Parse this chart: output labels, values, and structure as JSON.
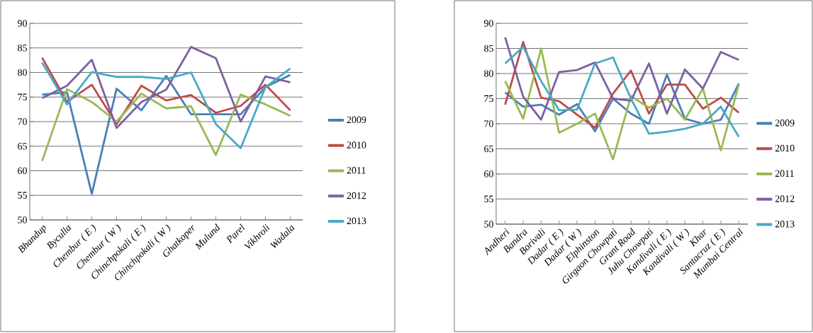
{
  "chart_data": [
    {
      "type": "line",
      "categories": [
        "Bhandup",
        "Byculla",
        "Chembur ( E )",
        "Chembur ( W )",
        "Chinchpokali ( E )",
        "Chinchpokali ( W )",
        "Ghatkoper",
        "Mulund",
        "Parel",
        "Vikhroli",
        "Wadala"
      ],
      "series": [
        {
          "name": "2009",
          "color": "#4a7ebb",
          "values": [
            75.5,
            76,
            55.3,
            76.7,
            72.3,
            79.3,
            71.5,
            71.5,
            71.5,
            77,
            79.5
          ]
        },
        {
          "name": "2010",
          "color": "#be4b48",
          "values": [
            83,
            74,
            77.5,
            69.5,
            77.3,
            74.3,
            75.4,
            71.8,
            73.2,
            77.5,
            72.3
          ]
        },
        {
          "name": "2011",
          "color": "#98b954",
          "values": [
            62,
            76.6,
            74,
            70,
            75.7,
            72.7,
            73.1,
            63.2,
            75.5,
            73.5,
            71.2
          ]
        },
        {
          "name": "2012",
          "color": "#7d60a0",
          "values": [
            74.8,
            77.3,
            82.6,
            68.7,
            74,
            76.5,
            85.2,
            82.9,
            70,
            79.2,
            78
          ]
        },
        {
          "name": "2013",
          "color": "#46aac5",
          "values": [
            82,
            73.5,
            80.1,
            79.1,
            79.1,
            78.7,
            80,
            69.5,
            64.6,
            77,
            80.8
          ]
        }
      ],
      "ylim": [
        50,
        90
      ],
      "yticks": [
        50,
        55,
        60,
        65,
        70,
        75,
        80,
        85,
        90
      ],
      "grid": "y",
      "legend": "right",
      "marker": "none",
      "line_style": "solid"
    },
    {
      "type": "line",
      "categories": [
        "Andheri",
        "Bandra",
        "Borivali",
        "Dadar ( E )",
        "Dadar ( W )",
        "Elphinston",
        "Girgaon Chowpati",
        "Grant Road",
        "Juhu Chowpati",
        "Kandivali ( E )",
        "Kandivali ( W )",
        "Khar",
        "Santacruz ( E )",
        "Mumbai Central"
      ],
      "series": [
        {
          "name": "2009",
          "color": "#4a7ebb",
          "values": [
            76.2,
            73.4,
            73.8,
            71.8,
            73.9,
            68.5,
            75,
            72,
            70,
            79.8,
            71,
            70,
            70.8,
            78
          ]
        },
        {
          "name": "2010",
          "color": "#be4b48",
          "values": [
            73.8,
            86.3,
            75.2,
            74.5,
            71.8,
            69.2,
            76,
            80.6,
            72,
            77.8,
            77.8,
            73,
            75.2,
            72.2
          ]
        },
        {
          "name": "2011",
          "color": "#98b954",
          "values": [
            78.5,
            71,
            85,
            68.2,
            70,
            72,
            62.9,
            75.5,
            73.2,
            75,
            70.8,
            77,
            64.7,
            77.8
          ]
        },
        {
          "name": "2012",
          "color": "#7d60a0",
          "values": [
            87.2,
            75.4,
            70.8,
            80.3,
            80.7,
            82.2,
            75,
            74.6,
            82,
            72,
            80.8,
            77,
            84.3,
            82.7
          ]
        },
        {
          "name": "2013",
          "color": "#46aac5",
          "values": [
            82,
            85.3,
            78.5,
            72.7,
            72.8,
            82,
            83.2,
            75,
            68,
            68.4,
            69,
            70,
            73.4,
            67.4
          ]
        }
      ],
      "ylim": [
        50,
        90
      ],
      "yticks": [
        50,
        55,
        60,
        65,
        70,
        75,
        80,
        85,
        90
      ],
      "grid": "y",
      "legend": "right",
      "marker": "none",
      "line_style": "solid"
    }
  ]
}
